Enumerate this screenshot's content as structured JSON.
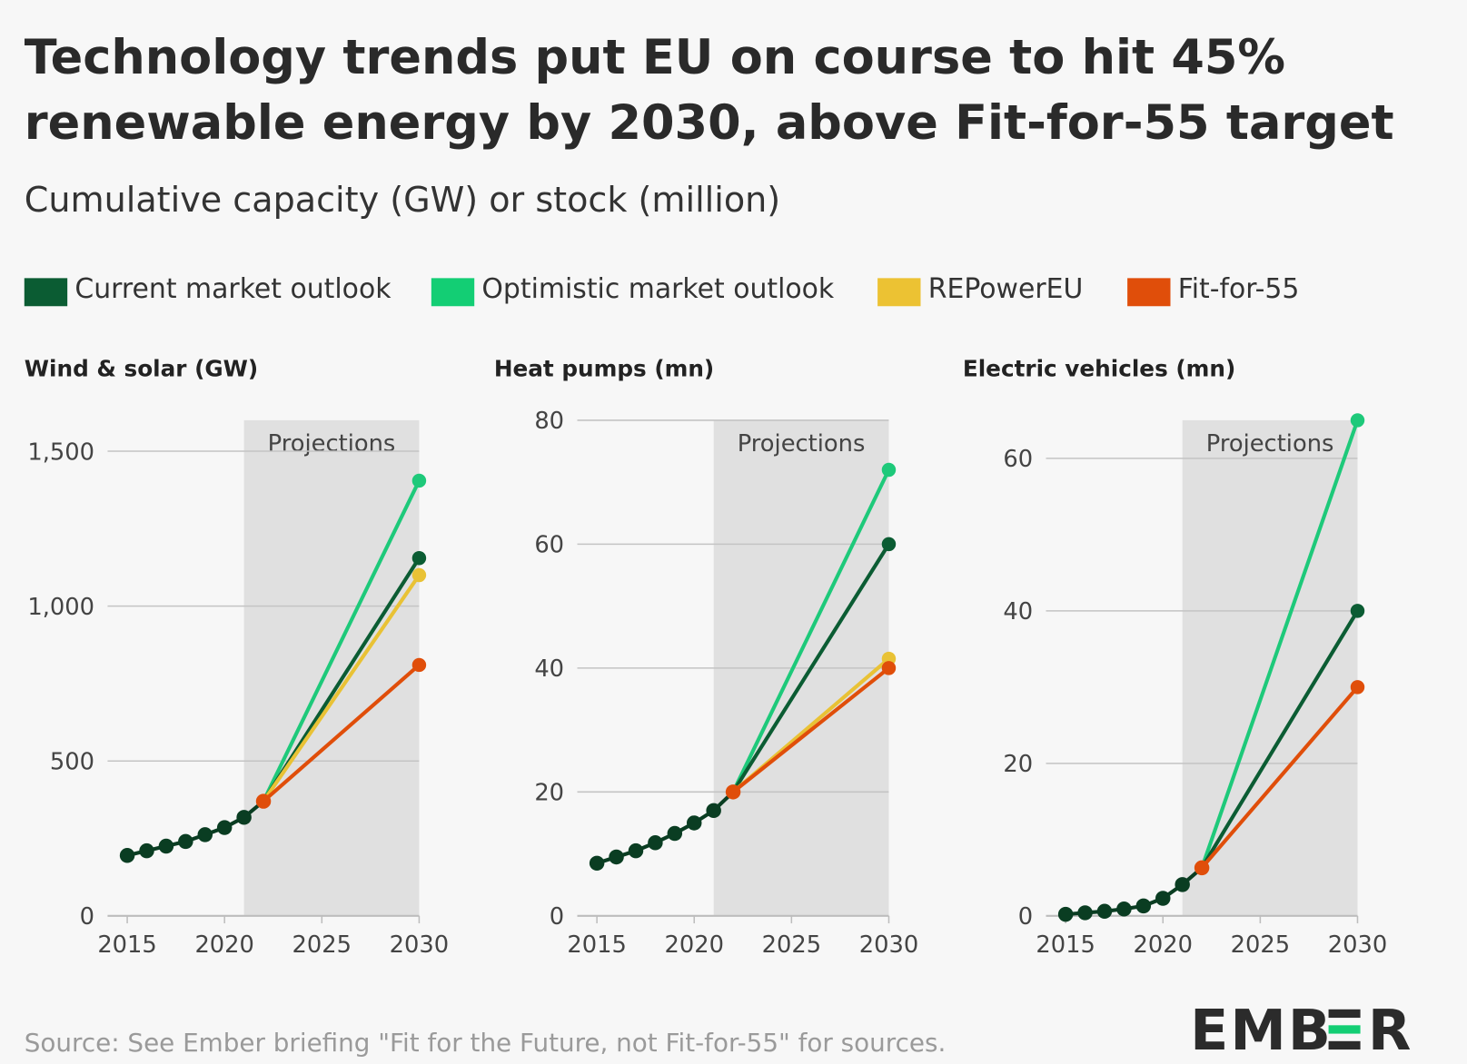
{
  "title_line1": "Technology trends put EU on course to hit 45%",
  "title_line2": "renewable energy by 2030, above Fit-for-55 target",
  "subtitle": "Cumulative capacity (GW) or stock (million)",
  "source": "Source: See Ember briefing \"Fit for the Future, not Fit-for-55\" for sources.",
  "logo": "EMBER",
  "colors": {
    "background": "#f7f7f7",
    "projection_shade": "#e0e0e0",
    "historical": "#0a3d22",
    "current": "#0b5c33",
    "optimistic": "#1ec97a",
    "repowereu": "#e9c235",
    "fit_for_55": "#e04e0a"
  },
  "legend": [
    {
      "key": "current",
      "label": "Current market outlook",
      "color": "#0b5c33"
    },
    {
      "key": "optimistic",
      "label": "Optimistic market outlook",
      "color": "#13ce74"
    },
    {
      "key": "repowereu",
      "label": "REPowerEU",
      "color": "#ecc233"
    },
    {
      "key": "fit_for_55",
      "label": "Fit-for-55",
      "color": "#e04e0a"
    }
  ],
  "chart_data": [
    {
      "type": "line",
      "title": "Wind & solar (GW)",
      "projection_label": "Projections",
      "projection_range": [
        2021,
        2030
      ],
      "xlim": [
        2015,
        2030
      ],
      "xticks": [
        2015,
        2020,
        2025,
        2030
      ],
      "xtick_labels": [
        "2015",
        "2020",
        "2025",
        "2030"
      ],
      "ylim": [
        0,
        1600
      ],
      "yticks": [
        0,
        500,
        1000,
        1500
      ],
      "ytick_labels": [
        "0",
        "500",
        "1,000",
        "1,500"
      ],
      "grid": true,
      "historical": {
        "x": [
          2015,
          2016,
          2017,
          2018,
          2019,
          2020,
          2021,
          2022
        ],
        "y": [
          195,
          210,
          225,
          240,
          262,
          285,
          318,
          370
        ]
      },
      "series": [
        {
          "key": "optimistic",
          "x": [
            2022,
            2030
          ],
          "y": [
            370,
            1405
          ]
        },
        {
          "key": "current",
          "x": [
            2022,
            2030
          ],
          "y": [
            370,
            1155
          ]
        },
        {
          "key": "repowereu",
          "x": [
            2022,
            2030
          ],
          "y": [
            370,
            1100
          ]
        },
        {
          "key": "fit_for_55",
          "x": [
            2022,
            2030
          ],
          "y": [
            370,
            810
          ]
        }
      ]
    },
    {
      "type": "line",
      "title": "Heat pumps (mn)",
      "projection_label": "Projections",
      "projection_range": [
        2021,
        2030
      ],
      "xlim": [
        2015,
        2030
      ],
      "xticks": [
        2015,
        2020,
        2025,
        2030
      ],
      "xtick_labels": [
        "2015",
        "2020",
        "2025",
        "2030"
      ],
      "ylim": [
        0,
        80
      ],
      "yticks": [
        0,
        20,
        40,
        60,
        80
      ],
      "ytick_labels": [
        "0",
        "20",
        "40",
        "60",
        "80"
      ],
      "grid": true,
      "historical": {
        "x": [
          2015,
          2016,
          2017,
          2018,
          2019,
          2020,
          2021,
          2022
        ],
        "y": [
          8.5,
          9.5,
          10.5,
          11.8,
          13.3,
          15,
          17,
          20
        ]
      },
      "series": [
        {
          "key": "optimistic",
          "x": [
            2022,
            2030
          ],
          "y": [
            20,
            72
          ]
        },
        {
          "key": "current",
          "x": [
            2022,
            2030
          ],
          "y": [
            20,
            60
          ]
        },
        {
          "key": "repowereu",
          "x": [
            2022,
            2030
          ],
          "y": [
            20,
            41.5
          ]
        },
        {
          "key": "fit_for_55",
          "x": [
            2022,
            2030
          ],
          "y": [
            20,
            40
          ]
        }
      ]
    },
    {
      "type": "line",
      "title": "Electric vehicles (mn)",
      "projection_label": "Projections",
      "projection_range": [
        2021,
        2030
      ],
      "xlim": [
        2015,
        2030
      ],
      "xticks": [
        2015,
        2020,
        2025,
        2030
      ],
      "xtick_labels": [
        "2015",
        "2020",
        "2025",
        "2030"
      ],
      "ylim": [
        0,
        65
      ],
      "yticks": [
        0,
        20,
        40,
        60
      ],
      "ytick_labels": [
        "0",
        "20",
        "40",
        "60"
      ],
      "grid": true,
      "historical": {
        "x": [
          2015,
          2016,
          2017,
          2018,
          2019,
          2020,
          2021,
          2022
        ],
        "y": [
          0.2,
          0.4,
          0.6,
          0.9,
          1.3,
          2.3,
          4.1,
          6.3
        ]
      },
      "series": [
        {
          "key": "optimistic",
          "x": [
            2022,
            2030
          ],
          "y": [
            6.3,
            65
          ]
        },
        {
          "key": "current",
          "x": [
            2022,
            2030
          ],
          "y": [
            6.3,
            40
          ]
        },
        {
          "key": "fit_for_55",
          "x": [
            2022,
            2030
          ],
          "y": [
            6.3,
            30
          ]
        }
      ]
    }
  ]
}
